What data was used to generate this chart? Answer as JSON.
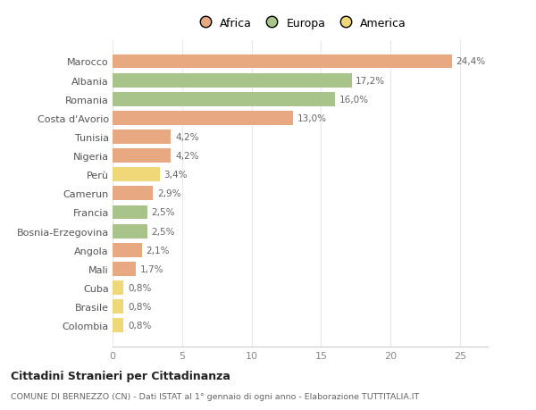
{
  "categories": [
    "Marocco",
    "Albania",
    "Romania",
    "Costa d'Avorio",
    "Tunisia",
    "Nigeria",
    "Perù",
    "Camerun",
    "Francia",
    "Bosnia-Erzegovina",
    "Angola",
    "Mali",
    "Cuba",
    "Brasile",
    "Colombia"
  ],
  "values": [
    24.4,
    17.2,
    16.0,
    13.0,
    4.2,
    4.2,
    3.4,
    2.9,
    2.5,
    2.5,
    2.1,
    1.7,
    0.8,
    0.8,
    0.8
  ],
  "labels": [
    "24,4%",
    "17,2%",
    "16,0%",
    "13,0%",
    "4,2%",
    "4,2%",
    "3,4%",
    "2,9%",
    "2,5%",
    "2,5%",
    "2,1%",
    "1,7%",
    "0,8%",
    "0,8%",
    "0,8%"
  ],
  "continents": [
    "Africa",
    "Europa",
    "Europa",
    "Africa",
    "Africa",
    "Africa",
    "America",
    "Africa",
    "Europa",
    "Europa",
    "Africa",
    "Africa",
    "America",
    "America",
    "America"
  ],
  "colors": {
    "Africa": "#E8A882",
    "Europa": "#A8C48A",
    "America": "#F0D878"
  },
  "title": "Cittadini Stranieri per Cittadinanza",
  "subtitle": "COMUNE DI BERNEZZO (CN) - Dati ISTAT al 1° gennaio di ogni anno - Elaborazione TUTTITALIA.IT",
  "xlim": [
    0,
    27
  ],
  "xticks": [
    0,
    5,
    10,
    15,
    20,
    25
  ],
  "background_color": "#ffffff",
  "grid_color": "#e8e8e8",
  "bar_height": 0.75
}
